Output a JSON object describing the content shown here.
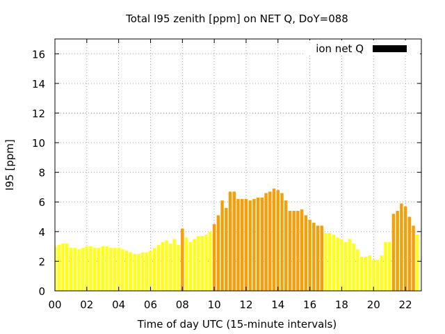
{
  "chart_data": {
    "type": "bar",
    "title": "Total I95 zenith [ppm] on NET Q, DoY=088",
    "xlabel": "Time of day UTC (15-minute intervals)",
    "ylabel": "I95 [ppm]",
    "xlim": [
      0,
      23
    ],
    "ylim": [
      0,
      17
    ],
    "grid": true,
    "x_ticks": [
      "00",
      "02",
      "04",
      "06",
      "08",
      "10",
      "12",
      "14",
      "16",
      "18",
      "20",
      "22"
    ],
    "x_tick_values": [
      0,
      2,
      4,
      6,
      8,
      10,
      12,
      14,
      16,
      18,
      20,
      22
    ],
    "y_ticks": [
      "0",
      "2",
      "4",
      "6",
      "8",
      "10",
      "12",
      "14",
      "16"
    ],
    "y_tick_values": [
      0,
      2,
      4,
      6,
      8,
      10,
      12,
      14,
      16
    ],
    "legend": {
      "label": "ion net Q",
      "color": "#000000",
      "position": "top-right"
    },
    "colors": {
      "low": "#ffff1a",
      "mid": "#f3c60c",
      "high": "#f5a00a",
      "axis": "#000000",
      "grid": "#a0a0a0"
    },
    "interval_hours": 0.25,
    "values": [
      3.0,
      3.1,
      3.2,
      3.2,
      2.9,
      2.9,
      2.8,
      2.9,
      3.0,
      3.0,
      2.9,
      2.9,
      3.0,
      3.0,
      2.9,
      2.9,
      2.9,
      2.8,
      2.7,
      2.6,
      2.5,
      2.5,
      2.6,
      2.6,
      2.7,
      2.9,
      3.1,
      3.3,
      3.4,
      3.2,
      3.5,
      3.1,
      4.2,
      3.6,
      3.3,
      3.5,
      3.7,
      3.7,
      3.8,
      4.0,
      4.5,
      5.1,
      6.1,
      5.6,
      6.7,
      6.7,
      6.2,
      6.2,
      6.2,
      6.1,
      6.2,
      6.3,
      6.3,
      6.6,
      6.7,
      6.9,
      6.8,
      6.6,
      6.1,
      5.4,
      5.4,
      5.4,
      5.5,
      5.1,
      4.8,
      4.6,
      4.4,
      4.4,
      3.9,
      3.9,
      3.8,
      3.6,
      3.5,
      3.3,
      3.5,
      3.2,
      2.8,
      2.3,
      2.3,
      2.4,
      2.1,
      2.1,
      2.4,
      3.3,
      3.3,
      5.2,
      5.4,
      5.9,
      5.7,
      5.0,
      4.4,
      3.8
    ],
    "bar_levels": [
      "low",
      "low",
      "low",
      "low",
      "low",
      "low",
      "low",
      "low",
      "low",
      "low",
      "low",
      "low",
      "low",
      "low",
      "low",
      "low",
      "low",
      "low",
      "low",
      "low",
      "low",
      "low",
      "low",
      "low",
      "low",
      "low",
      "low",
      "low",
      "low",
      "low",
      "low",
      "low",
      "high",
      "low",
      "low",
      "low",
      "low",
      "low",
      "low",
      "low",
      "high",
      "high",
      "high",
      "high",
      "high",
      "high",
      "high",
      "high",
      "high",
      "high",
      "high",
      "high",
      "high",
      "high",
      "high",
      "high",
      "high",
      "high",
      "high",
      "high",
      "high",
      "high",
      "high",
      "high",
      "high",
      "high",
      "high",
      "high",
      "low",
      "low",
      "low",
      "low",
      "low",
      "low",
      "low",
      "low",
      "low",
      "low",
      "low",
      "low",
      "low",
      "low",
      "low",
      "low",
      "low",
      "high",
      "high",
      "high",
      "high",
      "high",
      "high",
      "low"
    ]
  }
}
